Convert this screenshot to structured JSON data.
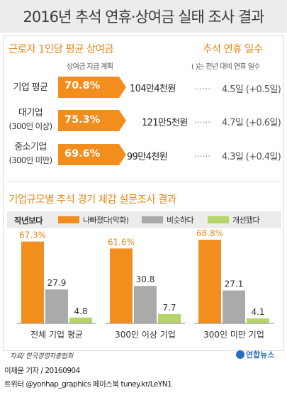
{
  "title": "2016년 추석 연휴·상여금 실태 조사 결과",
  "section1": {
    "heading_left": "근로자 1인당 평균 상여금",
    "heading_right": "추석 연휴 일수",
    "sub_left": "상여금 지급 계획",
    "sub_right": "(  )는 전년 대비 연휴 일수",
    "rows": [
      {
        "label_line1": "기업 평균",
        "label_line2": "",
        "percent": "70.8%",
        "percent_value": 70.8,
        "bonus": "104만4천원",
        "dots": "……",
        "days": "4.5일 (+0.5일)"
      },
      {
        "label_line1": "대기업",
        "label_line2": "(300인 이상)",
        "percent": "75.3%",
        "percent_value": 75.3,
        "bonus": "121만5천원",
        "dots": "……",
        "days": "4.7일 (+0.6일)"
      },
      {
        "label_line1": "중소기업",
        "label_line2": "(300인 미만)",
        "percent": "69.6%",
        "percent_value": 69.6,
        "bonus": "99만4천원",
        "dots": "……",
        "days": "4.3일 (+0.4일)"
      }
    ]
  },
  "section2": {
    "heading": "기업규모별 추석 경기 체감 설문조사 결과",
    "legend_title": "작년보다"
  },
  "chart_data": {
    "type": "bar",
    "title": "기업규모별 추석 경기 체감 설문조사 결과",
    "categories": [
      "전체 기업 평균",
      "300인 이상 기업",
      "300인 미만 기업"
    ],
    "series": [
      {
        "name": "나빠졌다(악화)",
        "values": [
          67.3,
          61.6,
          68.8
        ],
        "labels": [
          "67.3%",
          "61.6%",
          "68.8%"
        ],
        "color": "#f28e1e"
      },
      {
        "name": "비슷하다",
        "values": [
          27.9,
          30.8,
          27.1
        ],
        "labels": [
          "27.9",
          "30.8",
          "27.1"
        ],
        "color": "#aaaaaa"
      },
      {
        "name": "개선됐다",
        "values": [
          4.8,
          7.7,
          4.1
        ],
        "labels": [
          "4.8",
          "7.7",
          "4.1"
        ],
        "color": "#b5d56a"
      }
    ],
    "ylim": [
      0,
      100
    ],
    "grid": false,
    "legend": "top"
  },
  "colors": {
    "accent": "#f28e1e",
    "accent_dark": "#e3891c",
    "gray": "#aaaaaa",
    "green": "#b5d56a"
  },
  "footer": {
    "source": "자료/ 한국경영자총협회",
    "logo_text": "연합뉴스",
    "credit": "이재윤 기자 / 20160904",
    "social": "트위터 @yonhap_graphics  페이스북 tuney.kr/LeYN1"
  }
}
